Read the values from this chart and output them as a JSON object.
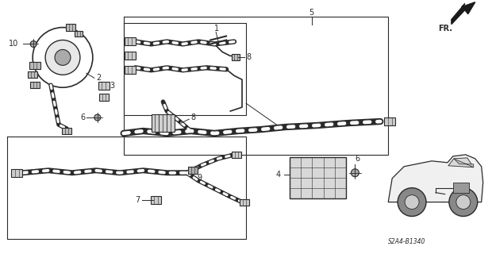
{
  "bg_color": "#ffffff",
  "line_color": "#2a2a2a",
  "fig_width": 6.2,
  "fig_height": 3.2,
  "dpi": 100,
  "diagram_code": "S2A4-B1340",
  "fr_label": "FR."
}
